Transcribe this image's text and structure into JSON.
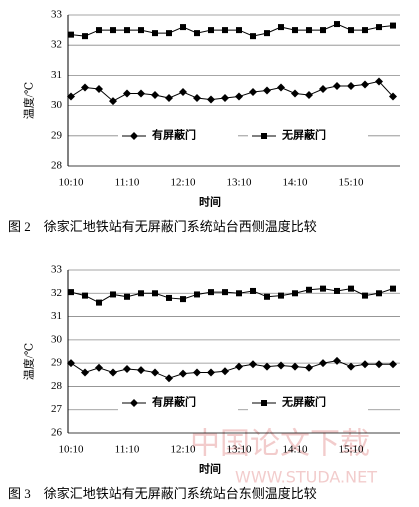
{
  "chart_data": [
    {
      "type": "line",
      "ylabel": "温度/℃",
      "xlabel": "时间",
      "caption": "图 2　徐家汇地铁站有无屏蔽门系统站台西侧温度比较",
      "categories": [
        "10:10",
        null,
        null,
        null,
        "11:10",
        null,
        null,
        null,
        "12:10",
        null,
        null,
        null,
        "13:10",
        null,
        null,
        null,
        "14:10",
        null,
        null,
        null,
        "15:10",
        null,
        null,
        null
      ],
      "ylim": [
        28,
        33
      ],
      "yticks": [
        28,
        29,
        30,
        31,
        32,
        33
      ],
      "grid": true,
      "series": [
        {
          "name": "有屏蔽门",
          "color": "#000000",
          "marker": "diamond",
          "values": [
            30.3,
            30.6,
            30.55,
            30.15,
            30.4,
            30.4,
            30.35,
            30.25,
            30.45,
            30.25,
            30.2,
            30.25,
            30.3,
            30.45,
            30.5,
            30.6,
            30.4,
            30.35,
            30.55,
            30.65,
            30.65,
            30.7,
            30.8,
            30.3
          ]
        },
        {
          "name": "无屏蔽门",
          "color": "#000000",
          "marker": "square",
          "values": [
            32.35,
            32.3,
            32.5,
            32.5,
            32.5,
            32.5,
            32.4,
            32.4,
            32.6,
            32.4,
            32.5,
            32.5,
            32.5,
            32.3,
            32.4,
            32.6,
            32.5,
            32.5,
            32.5,
            32.7,
            32.5,
            32.5,
            32.6,
            32.65
          ]
        }
      ]
    },
    {
      "type": "line",
      "ylabel": "温度/℃",
      "xlabel": "时间",
      "caption": "图 3　徐家汇地铁站有无屏蔽门系统站台东侧温度比较",
      "categories": [
        "10:10",
        null,
        null,
        null,
        "11:10",
        null,
        null,
        null,
        "12:10",
        null,
        null,
        null,
        "13:10",
        null,
        null,
        null,
        "14:10",
        null,
        null,
        null,
        "15:10",
        null,
        null,
        null
      ],
      "ylim": [
        26,
        33
      ],
      "yticks": [
        26,
        27,
        28,
        29,
        30,
        31,
        32,
        33
      ],
      "grid": true,
      "series": [
        {
          "name": "有屏蔽门",
          "color": "#000000",
          "marker": "diamond",
          "values": [
            29.0,
            28.6,
            28.8,
            28.6,
            28.75,
            28.7,
            28.6,
            28.35,
            28.55,
            28.6,
            28.6,
            28.65,
            28.85,
            28.95,
            28.85,
            28.9,
            28.85,
            28.8,
            29.0,
            29.1,
            28.85,
            28.95,
            28.95,
            28.95
          ]
        },
        {
          "name": "无屏蔽门",
          "color": "#000000",
          "marker": "square",
          "values": [
            32.05,
            31.9,
            31.6,
            31.95,
            31.85,
            32.0,
            32.0,
            31.8,
            31.75,
            31.95,
            32.05,
            32.05,
            32.0,
            32.1,
            31.85,
            31.9,
            32.0,
            32.15,
            32.2,
            32.1,
            32.2,
            31.9,
            32.0,
            32.2
          ]
        }
      ]
    }
  ],
  "watermark": [
    "中国论文下载",
    "WWW.STUDA.NET"
  ]
}
